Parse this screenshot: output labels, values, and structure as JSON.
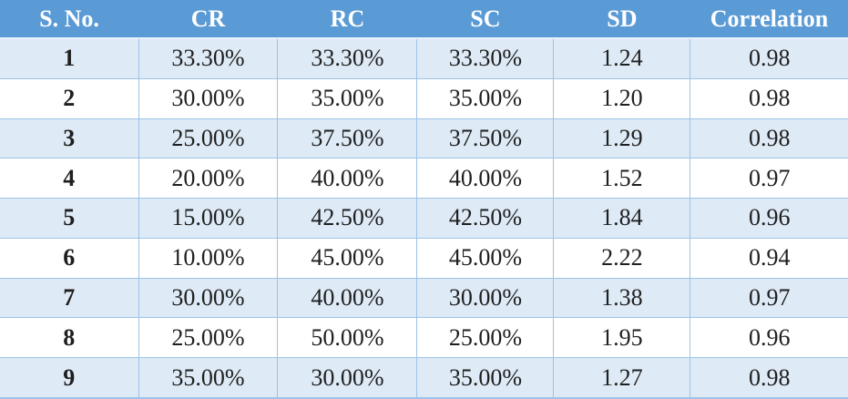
{
  "chart_data": {
    "type": "table",
    "title": "",
    "columns": [
      "S. No.",
      "CR",
      "RC",
      "SC",
      "SD",
      "Correlation"
    ],
    "rows": [
      [
        "1",
        "33.30%",
        "33.30%",
        "33.30%",
        "1.24",
        "0.98"
      ],
      [
        "2",
        "30.00%",
        "35.00%",
        "35.00%",
        "1.20",
        "0.98"
      ],
      [
        "3",
        "25.00%",
        "37.50%",
        "37.50%",
        "1.29",
        "0.98"
      ],
      [
        "4",
        "20.00%",
        "40.00%",
        "40.00%",
        "1.52",
        "0.97"
      ],
      [
        "5",
        "15.00%",
        "42.50%",
        "42.50%",
        "1.84",
        "0.96"
      ],
      [
        "6",
        "10.00%",
        "45.00%",
        "45.00%",
        "2.22",
        "0.94"
      ],
      [
        "7",
        "30.00%",
        "40.00%",
        "30.00%",
        "1.38",
        "0.97"
      ],
      [
        "8",
        "25.00%",
        "50.00%",
        "25.00%",
        "1.95",
        "0.96"
      ],
      [
        "9",
        "35.00%",
        "30.00%",
        "35.00%",
        "1.27",
        "0.98"
      ]
    ],
    "layout": {
      "banded_rows": true,
      "header_style": "solid-fill",
      "text_align": "center"
    }
  },
  "colors": {
    "header_bg": "#5B9BD5",
    "header_text": "#FFFFFF",
    "band_bg": "#DEEAF6",
    "row_bg": "#FFFFFF",
    "border": "#9DC3E6",
    "text": "#1F1F1F"
  }
}
